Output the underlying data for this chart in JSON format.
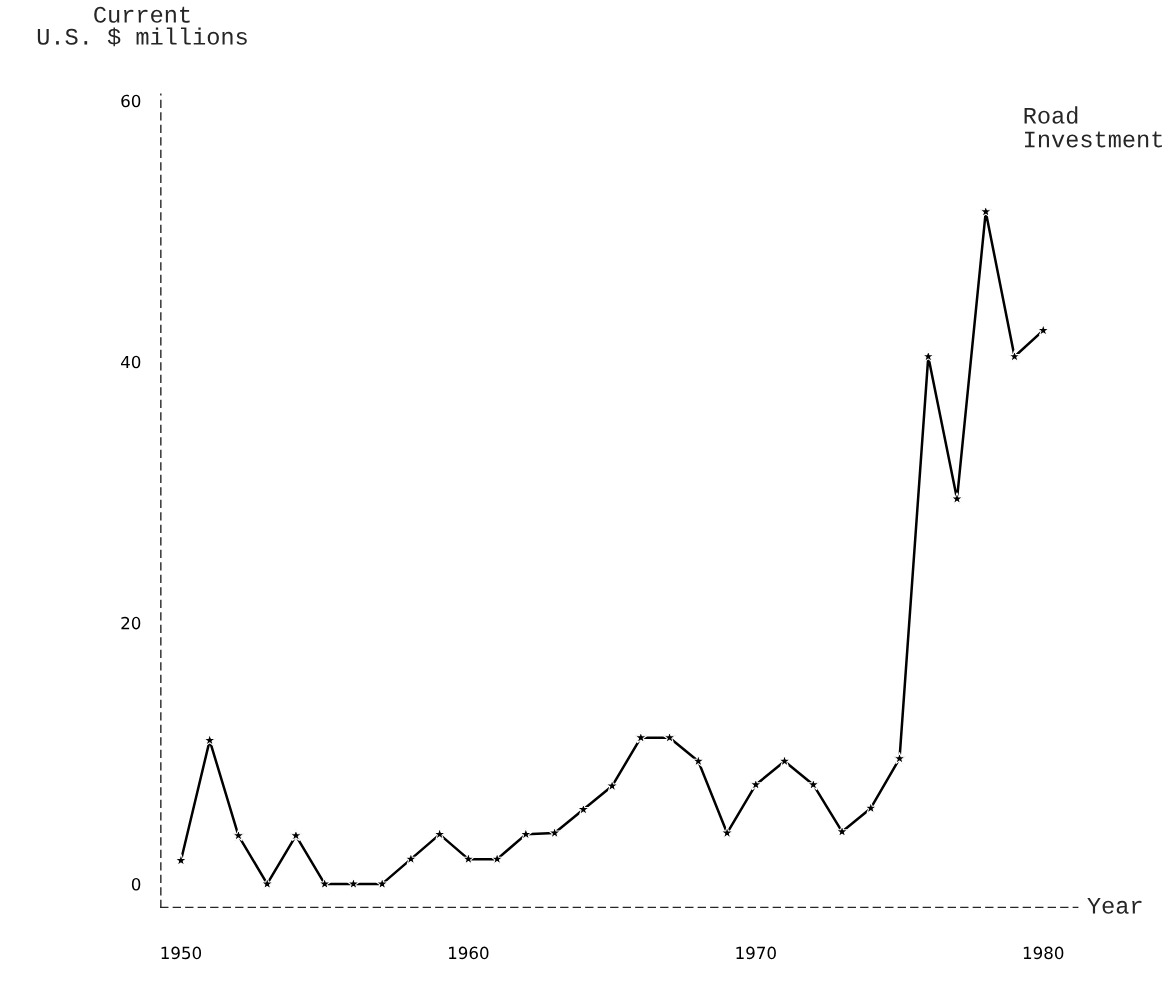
{
  "chart_data": {
    "type": "line",
    "title": "Road\nInvestment",
    "ylabel": "Current\nU.S. $ millions",
    "xlabel": "Year",
    "x": [
      1950,
      1951,
      1952,
      1953,
      1954,
      1955,
      1956,
      1957,
      1958,
      1959,
      1960,
      1961,
      1962,
      1963,
      1964,
      1965,
      1966,
      1967,
      1968,
      1969,
      1970,
      1971,
      1972,
      1973,
      1974,
      1975,
      1976,
      1977,
      1978,
      1979,
      1980
    ],
    "series": [
      {
        "color": "#000000",
        "values": [
          1.8,
          11.0,
          3.7,
          0,
          3.7,
          0,
          0,
          0,
          1.9,
          3.8,
          1.9,
          1.9,
          3.8,
          3.9,
          5.7,
          7.5,
          11.2,
          11.2,
          9.4,
          3.9,
          7.6,
          9.4,
          7.6,
          4.0,
          5.8,
          9.6,
          40.4,
          29.5,
          51.5,
          40.4,
          42.4
        ]
      }
    ],
    "xlim": [
      1949.3,
      1981.2
    ],
    "ylim": [
      -1.8,
      60.5
    ],
    "xticks": [
      1950,
      1960,
      1970,
      1980
    ],
    "yticks": [
      0,
      20,
      40,
      60
    ],
    "marker": "star",
    "line_style": "solid",
    "grid": false,
    "legend": false
  }
}
